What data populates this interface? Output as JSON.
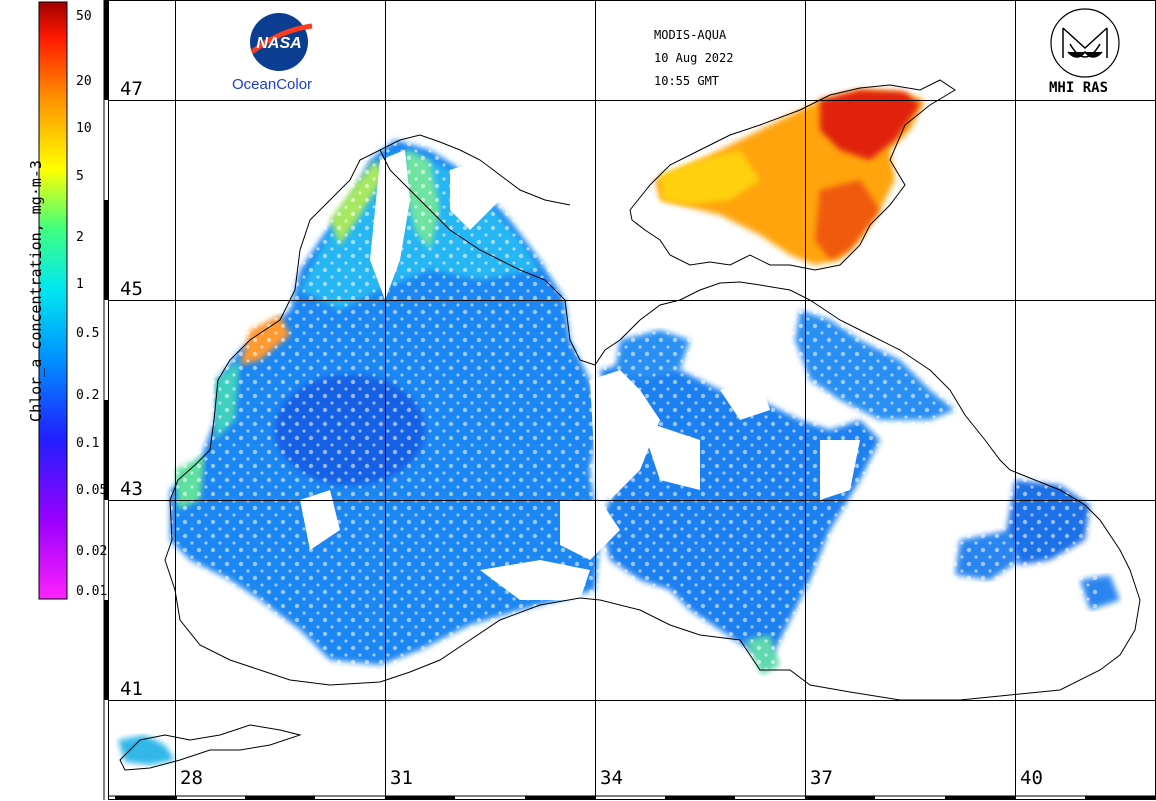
{
  "header": {
    "sensor": "MODIS-AQUA",
    "date": "10 Aug 2022",
    "time": "10:55 GMT"
  },
  "logos": {
    "left_logo_text": "NASA",
    "left_label": "OceanColor",
    "right_label": "MHI RAS"
  },
  "colorbar": {
    "title": "Chlor_a concentration, mg·m-3",
    "ticks": [
      "50",
      "20",
      "10",
      "5",
      "2",
      "1",
      "0.5",
      "0.2",
      "0.1",
      "0.05",
      "0.02",
      "0.01"
    ],
    "scale": "log",
    "colors": [
      "#ff00ff",
      "#8000ff",
      "#0000ff",
      "#0080ff",
      "#00e0ff",
      "#00ff80",
      "#ffff00",
      "#ff8000",
      "#ff0000",
      "#800000"
    ]
  },
  "grid": {
    "latitudes": [
      "47",
      "45",
      "43",
      "41"
    ],
    "longitudes": [
      "28",
      "31",
      "34",
      "37",
      "40"
    ]
  },
  "map": {
    "region": "Black Sea",
    "land_color": "#ffffff",
    "coastline_color": "#000000"
  }
}
